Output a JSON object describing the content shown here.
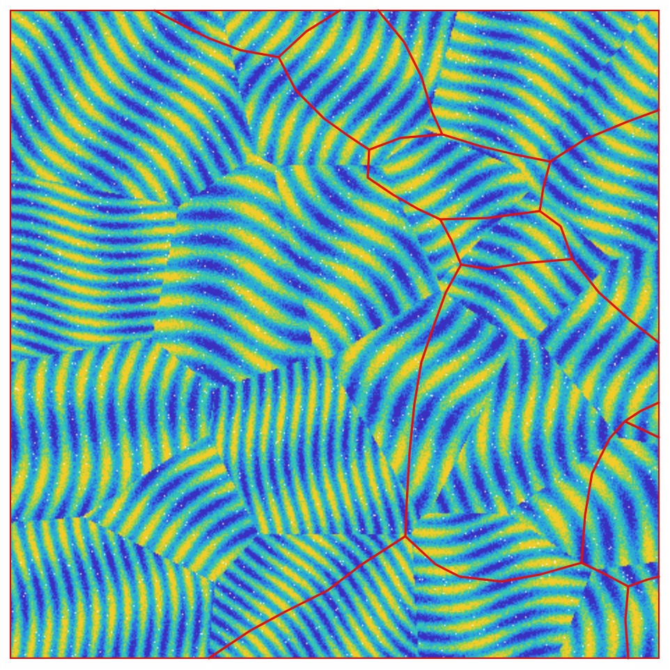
{
  "image": {
    "type": "microstructure orientation map with grain boundary overlay",
    "colormap": [
      "#3a2fbf",
      "#2f6fe0",
      "#2aa9d8",
      "#38c6b0",
      "#9ccf4a",
      "#f2cd2a",
      "#ffffff"
    ],
    "background_color": "#ffffff",
    "frame_color": "#cc1111",
    "boundary_color": "#e01010"
  }
}
